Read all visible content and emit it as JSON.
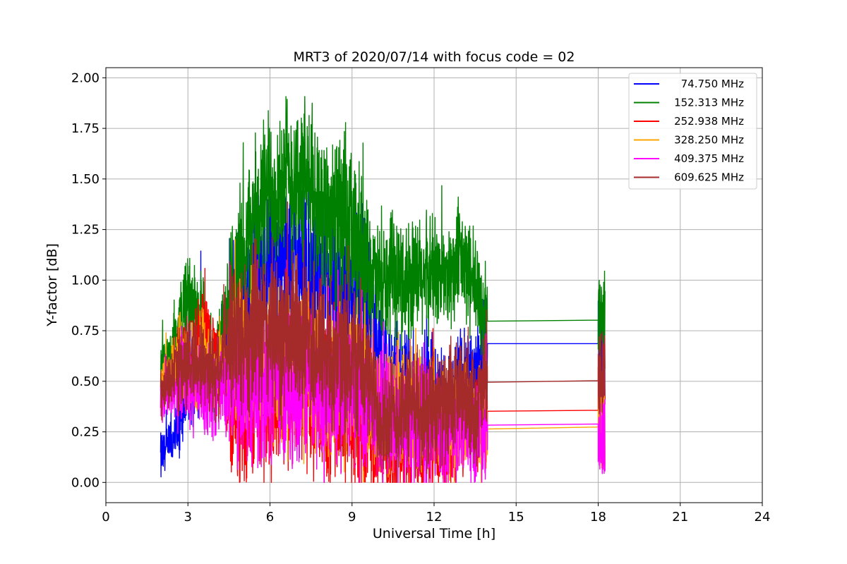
{
  "chart_data": {
    "type": "line",
    "title": "MRT3 of 2020/07/14 with focus code = 02",
    "xlabel": "Universal Time [h]",
    "ylabel": "Y-factor [dB]",
    "xlim": [
      0,
      24
    ],
    "ylim": [
      -0.1,
      2.05
    ],
    "xticks": [
      0,
      3,
      6,
      9,
      12,
      15,
      18,
      21,
      24
    ],
    "xtick_labels": [
      "0",
      "3",
      "6",
      "9",
      "12",
      "15",
      "18",
      "21",
      "24"
    ],
    "yticks": [
      0.0,
      0.25,
      0.5,
      0.75,
      1.0,
      1.25,
      1.5,
      1.75,
      2.0
    ],
    "ytick_labels": [
      "0.00",
      "0.25",
      "0.50",
      "0.75",
      "1.00",
      "1.25",
      "1.50",
      "1.75",
      "2.00"
    ],
    "grid": true,
    "legend_position": "top-right",
    "series": [
      {
        "name": "74.750 MHz",
        "color": "#0000ff",
        "x": [
          2.0,
          2.5,
          3.0,
          3.5,
          4.0,
          4.5,
          5.0,
          5.5,
          6.0,
          6.5,
          7.0,
          7.5,
          8.0,
          8.5,
          9.0,
          9.5,
          10.0,
          10.5,
          11.0,
          11.5,
          12.0,
          12.5,
          13.0,
          13.5,
          13.95,
          18.0,
          18.25
        ],
        "y": [
          0.12,
          0.2,
          0.5,
          0.6,
          0.55,
          0.7,
          0.85,
          1.0,
          1.1,
          1.05,
          1.1,
          1.0,
          0.95,
          0.9,
          0.95,
          1.0,
          0.65,
          0.45,
          0.5,
          0.4,
          0.45,
          0.35,
          0.55,
          0.5,
          0.686,
          0.686,
          0.6
        ],
        "x_range": [
          2.0,
          18.25
        ],
        "y_range": [
          0.02,
          1.44
        ]
      },
      {
        "name": "152.313 MHz",
        "color": "#008000",
        "x": [
          2.0,
          2.5,
          3.0,
          3.5,
          4.0,
          4.5,
          5.0,
          5.5,
          6.0,
          6.5,
          7.0,
          7.5,
          8.0,
          8.5,
          9.0,
          9.5,
          10.0,
          10.5,
          11.0,
          11.5,
          12.0,
          12.5,
          13.0,
          13.5,
          13.95,
          18.0,
          18.25
        ],
        "y": [
          0.55,
          0.7,
          0.9,
          0.75,
          0.55,
          0.85,
          1.1,
          1.3,
          1.45,
          1.5,
          1.5,
          1.45,
          1.35,
          1.3,
          1.2,
          1.1,
          0.95,
          1.0,
          1.0,
          1.0,
          1.05,
          1.0,
          1.1,
          0.95,
          0.797,
          0.802,
          0.85
        ],
        "x_range": [
          2.0,
          18.25
        ],
        "y_range": [
          0.0,
          1.94
        ]
      },
      {
        "name": "252.938 MHz",
        "color": "#ff0000",
        "x": [
          2.0,
          2.5,
          3.0,
          3.5,
          4.0,
          4.5,
          5.0,
          5.5,
          6.0,
          6.5,
          7.0,
          7.5,
          8.0,
          8.5,
          9.0,
          9.5,
          10.0,
          10.5,
          11.0,
          11.5,
          12.0,
          12.5,
          13.0,
          13.5,
          13.95,
          18.0,
          18.25
        ],
        "y": [
          0.45,
          0.55,
          0.65,
          0.7,
          0.6,
          0.45,
          0.4,
          0.4,
          0.4,
          0.45,
          0.5,
          0.45,
          0.4,
          0.4,
          0.35,
          0.3,
          0.2,
          0.15,
          0.2,
          0.25,
          0.25,
          0.2,
          0.3,
          0.3,
          0.352,
          0.357,
          0.5
        ],
        "x_range": [
          2.0,
          18.25
        ],
        "y_range": [
          0.0,
          1.55
        ]
      },
      {
        "name": "328.250 MHz",
        "color": "#ffa500",
        "x": [
          2.0,
          2.5,
          3.0,
          3.5,
          4.0,
          4.5,
          5.0,
          5.5,
          6.0,
          6.5,
          7.0,
          7.5,
          8.0,
          8.5,
          9.0,
          9.5,
          10.0,
          10.5,
          11.0,
          11.5,
          12.0,
          12.5,
          13.0,
          13.5,
          13.95,
          18.0,
          18.25
        ],
        "y": [
          0.5,
          0.6,
          0.6,
          0.6,
          0.55,
          0.55,
          0.6,
          0.6,
          0.6,
          0.55,
          0.55,
          0.55,
          0.5,
          0.5,
          0.5,
          0.45,
          0.4,
          0.35,
          0.35,
          0.35,
          0.3,
          0.25,
          0.35,
          0.3,
          0.264,
          0.274,
          0.3
        ],
        "x_range": [
          2.0,
          18.25
        ],
        "y_range": [
          0.0,
          1.2
        ]
      },
      {
        "name": "409.375 MHz",
        "color": "#ff00ff",
        "x": [
          2.0,
          2.5,
          3.0,
          3.5,
          4.0,
          4.5,
          5.0,
          5.5,
          6.0,
          6.5,
          7.0,
          7.5,
          8.0,
          8.5,
          9.0,
          9.5,
          10.0,
          10.5,
          11.0,
          11.5,
          12.0,
          12.5,
          13.0,
          13.5,
          13.95,
          18.0,
          18.25
        ],
        "y": [
          0.4,
          0.45,
          0.5,
          0.45,
          0.45,
          0.5,
          0.5,
          0.5,
          0.55,
          0.5,
          0.5,
          0.5,
          0.45,
          0.45,
          0.45,
          0.4,
          0.35,
          0.3,
          0.3,
          0.3,
          0.25,
          0.2,
          0.3,
          0.25,
          0.283,
          0.289,
          0.2
        ],
        "x_range": [
          2.0,
          18.25
        ],
        "y_range": [
          0.0,
          1.1
        ]
      },
      {
        "name": "609.625 MHz",
        "color": "#a52a2a",
        "x": [
          2.0,
          2.5,
          3.0,
          3.5,
          4.0,
          4.5,
          5.0,
          5.5,
          6.0,
          6.5,
          7.0,
          7.5,
          8.0,
          8.5,
          9.0,
          9.5,
          10.0,
          10.5,
          11.0,
          11.5,
          12.0,
          12.5,
          13.0,
          13.5,
          13.95,
          18.0,
          18.25
        ],
        "y": [
          0.42,
          0.55,
          0.6,
          0.6,
          0.55,
          0.7,
          0.75,
          0.75,
          0.75,
          0.7,
          0.75,
          0.7,
          0.65,
          0.6,
          0.6,
          0.55,
          0.35,
          0.3,
          0.4,
          0.35,
          0.4,
          0.35,
          0.45,
          0.35,
          0.495,
          0.503,
          0.55
        ],
        "x_range": [
          2.0,
          18.25
        ],
        "y_range": [
          0.0,
          1.52
        ]
      }
    ]
  }
}
